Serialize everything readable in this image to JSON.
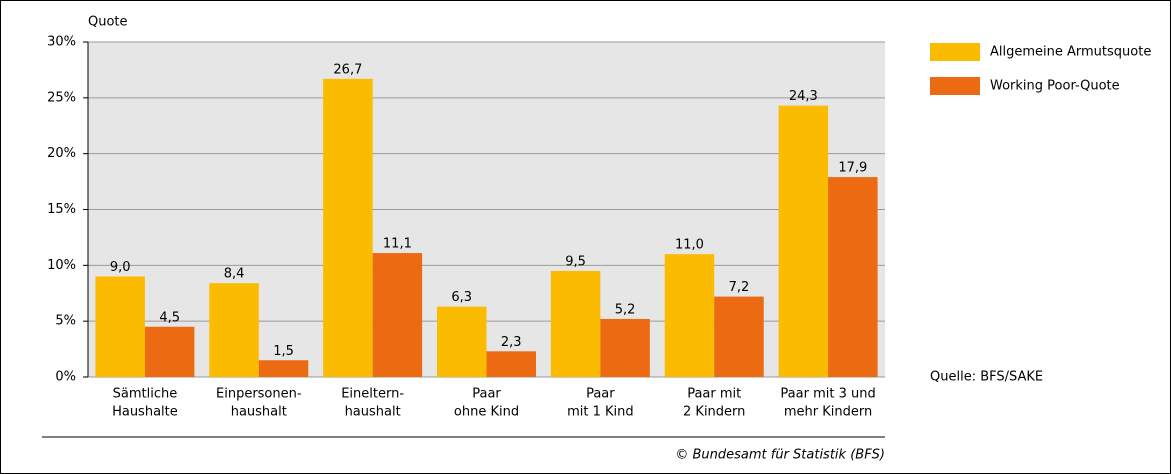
{
  "chart_data": {
    "type": "bar",
    "ylabel": "Quote",
    "categories": [
      [
        "Sämtliche",
        "Haushalte"
      ],
      [
        "Einpersonen-",
        "haushalt"
      ],
      [
        "Eineltern-",
        "haushalt"
      ],
      [
        "Paar",
        "ohne Kind"
      ],
      [
        "Paar",
        "mit 1 Kind"
      ],
      [
        "Paar mit",
        "2 Kindern"
      ],
      [
        "Paar mit 3 und",
        "mehr Kindern"
      ]
    ],
    "series": [
      {
        "name": "Allgemeine Armutsquote",
        "color": "#fbbb00",
        "values": [
          9.0,
          8.4,
          26.7,
          6.3,
          9.5,
          11.0,
          24.3
        ],
        "value_labels": [
          "9,0",
          "8,4",
          "26,7",
          "6,3",
          "9,5",
          "11,0",
          "24,3"
        ]
      },
      {
        "name": "Working Poor-Quote",
        "color": "#ec6a12",
        "values": [
          4.5,
          1.5,
          11.1,
          2.3,
          5.2,
          7.2,
          17.9
        ],
        "value_labels": [
          "4,5",
          "1,5",
          "11,1",
          "2,3",
          "5,2",
          "7,2",
          "17,9"
        ]
      }
    ],
    "ylim": [
      0,
      30
    ],
    "yticks": [
      {
        "value": 0,
        "label": "0%"
      },
      {
        "value": 5,
        "label": "5%"
      },
      {
        "value": 10,
        "label": "10%"
      },
      {
        "value": 15,
        "label": "15%"
      },
      {
        "value": 20,
        "label": "20%"
      },
      {
        "value": 25,
        "label": "25%"
      },
      {
        "value": 30,
        "label": "30%"
      }
    ],
    "grid": true,
    "legend": "right",
    "source": "Quelle: BFS/SAKE",
    "credit": "© Bundesamt für Statistik (BFS)"
  }
}
